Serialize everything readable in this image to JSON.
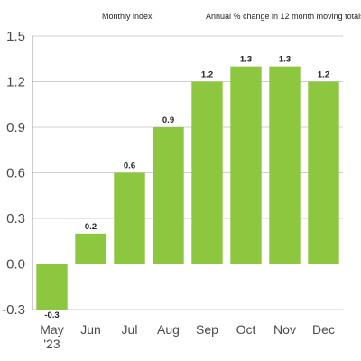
{
  "header": {
    "left_label": "Monthly index",
    "right_label": "Annual % change in 12 month moving totals"
  },
  "chart_data": {
    "type": "bar",
    "categories": [
      "May\n'23",
      "Jun",
      "Jul",
      "Aug",
      "Sep",
      "Oct",
      "Nov",
      "Dec"
    ],
    "values": [
      -0.3,
      0.2,
      0.6,
      0.9,
      1.2,
      1.3,
      1.3,
      1.2
    ],
    "data_labels": [
      "-0.3",
      "0.2",
      "0.6",
      "0.9",
      "1.2",
      "1.3",
      "1.3",
      "1.2"
    ],
    "yticks": [
      -0.3,
      0.0,
      0.3,
      0.6,
      0.9,
      1.2,
      1.5
    ],
    "ytick_labels": [
      "-0.3",
      "0.0",
      "0.3",
      "0.6",
      "0.9",
      "1.2",
      "1.5"
    ],
    "ylim": [
      -0.3,
      1.5
    ],
    "grid": true,
    "bar_color": "#8dc63f",
    "title": "",
    "xlabel": "",
    "ylabel": ""
  }
}
